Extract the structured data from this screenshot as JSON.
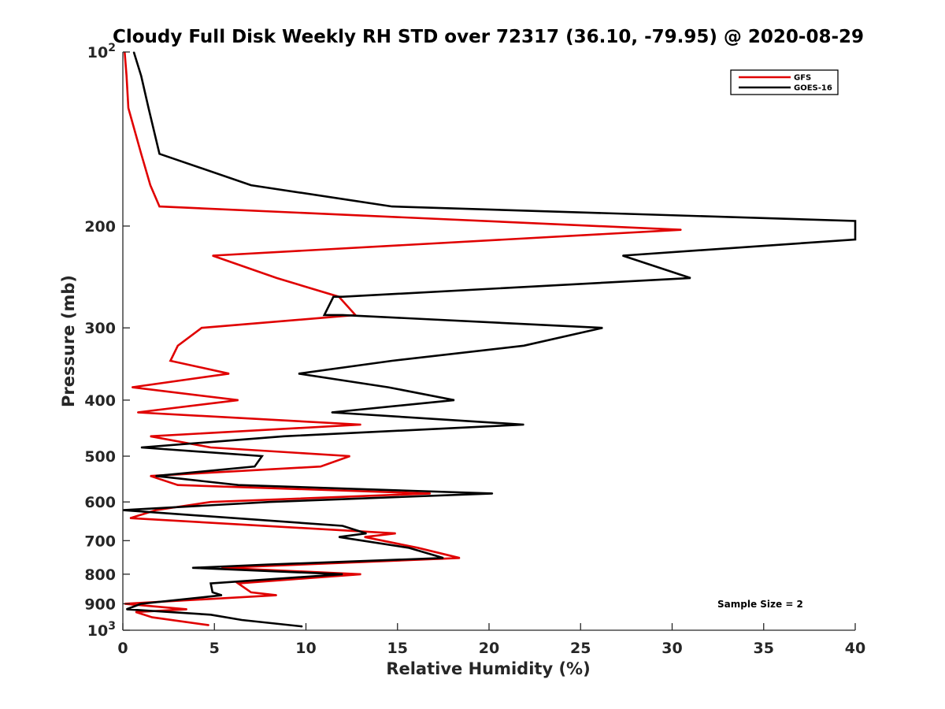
{
  "chart_data": {
    "type": "line",
    "title": "Cloudy Full Disk Weekly RH STD over 72317 (36.10, -79.95) @ 2020-08-29",
    "xlabel": "Relative Humidity (%)",
    "ylabel": "Pressure (mb)",
    "xlim": [
      0,
      40
    ],
    "ylim": [
      100,
      1000
    ],
    "yscale": "log",
    "y_reversed": true,
    "grid": false,
    "legend_position": "top-right",
    "x_ticks": [
      "0",
      "5",
      "10",
      "15",
      "20",
      "25",
      "30",
      "35",
      "40"
    ],
    "y_ticks": [
      {
        "value": 100,
        "base": "10",
        "exp": "2"
      },
      {
        "value": 200,
        "label": "200"
      },
      {
        "value": 300,
        "label": "300"
      },
      {
        "value": 400,
        "label": "400"
      },
      {
        "value": 500,
        "label": "500"
      },
      {
        "value": 600,
        "label": "600"
      },
      {
        "value": 700,
        "label": "700"
      },
      {
        "value": 800,
        "label": "800"
      },
      {
        "value": 900,
        "label": "900"
      },
      {
        "value": 1000,
        "base": "10",
        "exp": "3"
      }
    ],
    "annotation": "Sample Size = 2",
    "series": [
      {
        "name": "GFS",
        "color": "#e00000",
        "points": [
          [
            0.1,
            100
          ],
          [
            0.2,
            110
          ],
          [
            0.3,
            125
          ],
          [
            1.0,
            150
          ],
          [
            1.5,
            170
          ],
          [
            2.0,
            185
          ],
          [
            30.5,
            203
          ],
          [
            4.9,
            225
          ],
          [
            8.4,
            246
          ],
          [
            11.8,
            265
          ],
          [
            12.7,
            285
          ],
          [
            4.3,
            300
          ],
          [
            3.0,
            322
          ],
          [
            2.6,
            342
          ],
          [
            5.8,
            360
          ],
          [
            0.5,
            380
          ],
          [
            6.3,
            400
          ],
          [
            0.8,
            420
          ],
          [
            13.0,
            441
          ],
          [
            1.5,
            462
          ],
          [
            4.8,
            483
          ],
          [
            12.4,
            500
          ],
          [
            10.8,
            521
          ],
          [
            1.5,
            541
          ],
          [
            3.0,
            561
          ],
          [
            16.8,
            580
          ],
          [
            4.8,
            600
          ],
          [
            1.8,
            620
          ],
          [
            0.4,
            640
          ],
          [
            14.9,
            680
          ],
          [
            13.2,
            690
          ],
          [
            16.1,
            720
          ],
          [
            18.4,
            750
          ],
          [
            5.4,
            780
          ],
          [
            13.0,
            800
          ],
          [
            6.3,
            830
          ],
          [
            7.0,
            860
          ],
          [
            8.4,
            870
          ],
          [
            0.1,
            900
          ],
          [
            3.5,
            920
          ],
          [
            0.7,
            930
          ],
          [
            1.6,
            950
          ],
          [
            4.7,
            980
          ]
        ]
      },
      {
        "name": "GOES-16",
        "color": "#000000",
        "points": [
          [
            0.6,
            100
          ],
          [
            1.0,
            110
          ],
          [
            1.4,
            125
          ],
          [
            2.0,
            150
          ],
          [
            7.0,
            170
          ],
          [
            14.7,
            185
          ],
          [
            40.0,
            196
          ],
          [
            40.0,
            211
          ],
          [
            27.3,
            225
          ],
          [
            31.0,
            246
          ],
          [
            12.0,
            265
          ],
          [
            11.5,
            265
          ],
          [
            11.0,
            285
          ],
          [
            12.0,
            285
          ],
          [
            26.2,
            300
          ],
          [
            21.9,
            322
          ],
          [
            14.7,
            342
          ],
          [
            9.6,
            360
          ],
          [
            14.5,
            380
          ],
          [
            18.1,
            400
          ],
          [
            11.4,
            420
          ],
          [
            21.9,
            441
          ],
          [
            8.8,
            462
          ],
          [
            1.0,
            483
          ],
          [
            7.6,
            500
          ],
          [
            7.2,
            521
          ],
          [
            1.8,
            541
          ],
          [
            6.3,
            561
          ],
          [
            20.2,
            580
          ],
          [
            8.0,
            600
          ],
          [
            0.0,
            620
          ],
          [
            12.0,
            660
          ],
          [
            13.3,
            680
          ],
          [
            11.8,
            690
          ],
          [
            15.6,
            720
          ],
          [
            17.5,
            750
          ],
          [
            7.9,
            770
          ],
          [
            3.8,
            780
          ],
          [
            12.0,
            800
          ],
          [
            4.8,
            830
          ],
          [
            4.9,
            860
          ],
          [
            5.4,
            870
          ],
          [
            1.0,
            900
          ],
          [
            0.2,
            920
          ],
          [
            4.8,
            940
          ],
          [
            6.5,
            960
          ],
          [
            9.8,
            985
          ]
        ]
      }
    ]
  }
}
